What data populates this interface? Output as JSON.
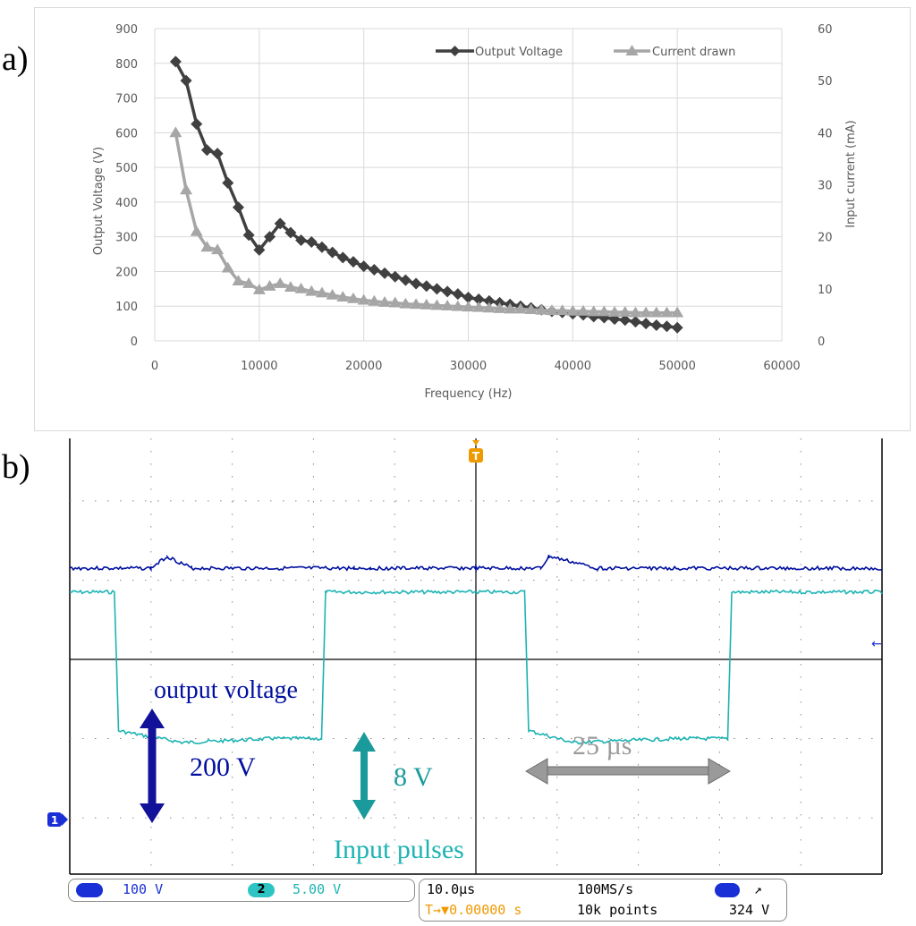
{
  "panel_labels": {
    "a": "a)",
    "b": "b)"
  },
  "chart_data": [
    {
      "type": "line",
      "title": "",
      "xlabel": "Frequency (Hz)",
      "ylabel": "Output Voltage (V)",
      "y2label": "Input current (mA)",
      "xlim": [
        0,
        60000
      ],
      "ylim": [
        0,
        900
      ],
      "y2lim": [
        0,
        60
      ],
      "x_ticks": [
        "0",
        "10000",
        "20000",
        "30000",
        "40000",
        "50000",
        "60000"
      ],
      "y_ticks": [
        "0",
        "100",
        "200",
        "300",
        "400",
        "500",
        "600",
        "700",
        "800",
        "900"
      ],
      "y2_ticks": [
        "0",
        "10",
        "20",
        "30",
        "40",
        "50",
        "60"
      ],
      "grid": true,
      "legend_position": "top-right",
      "series": [
        {
          "name": "Output Voltage",
          "axis": "left",
          "color": "#404040",
          "marker": "diamond",
          "x": [
            2000,
            3000,
            4000,
            5000,
            6000,
            7000,
            8000,
            9000,
            10000,
            11000,
            12000,
            13000,
            14000,
            15000,
            16000,
            17000,
            18000,
            19000,
            20000,
            21000,
            22000,
            23000,
            24000,
            25000,
            26000,
            27000,
            28000,
            29000,
            30000,
            31000,
            32000,
            33000,
            34000,
            35000,
            36000,
            37000,
            38000,
            39000,
            40000,
            41000,
            42000,
            43000,
            44000,
            45000,
            46000,
            47000,
            48000,
            49000,
            50000
          ],
          "values": [
            805,
            750,
            625,
            550,
            540,
            455,
            385,
            305,
            262,
            300,
            338,
            312,
            290,
            285,
            270,
            255,
            240,
            228,
            215,
            205,
            195,
            185,
            175,
            165,
            158,
            150,
            142,
            135,
            125,
            120,
            115,
            110,
            105,
            100,
            95,
            90,
            85,
            82,
            78,
            75,
            70,
            67,
            63,
            60,
            55,
            50,
            45,
            42,
            38
          ]
        },
        {
          "name": "Current drawn",
          "axis": "right",
          "color": "#a6a6a6",
          "marker": "triangle",
          "x": [
            2000,
            3000,
            4000,
            5000,
            6000,
            7000,
            8000,
            9000,
            10000,
            11000,
            12000,
            13000,
            14000,
            15000,
            16000,
            17000,
            18000,
            19000,
            20000,
            21000,
            22000,
            23000,
            24000,
            25000,
            26000,
            27000,
            28000,
            29000,
            30000,
            31000,
            32000,
            33000,
            34000,
            35000,
            36000,
            37000,
            38000,
            39000,
            40000,
            41000,
            42000,
            43000,
            44000,
            45000,
            46000,
            47000,
            48000,
            49000,
            50000
          ],
          "values": [
            40,
            29,
            21,
            18,
            17.5,
            14,
            11.5,
            11,
            9.8,
            10.5,
            11,
            10.3,
            10,
            9.5,
            9.2,
            8.8,
            8.4,
            8.1,
            7.8,
            7.6,
            7.4,
            7.3,
            7.1,
            7,
            6.9,
            6.8,
            6.7,
            6.6,
            6.5,
            6.4,
            6.3,
            6.2,
            6.1,
            6.1,
            6,
            5.9,
            5.8,
            5.8,
            5.7,
            5.7,
            5.6,
            5.6,
            5.5,
            5.5,
            5.4,
            5.4,
            5.4,
            5.4,
            5.4
          ]
        }
      ]
    },
    {
      "type": "line",
      "title": "",
      "x_unit": "µs",
      "xlim": [
        -50,
        50
      ],
      "series": [
        {
          "name": "output voltage",
          "color": "#000f9f",
          "x": [
            -50,
            -40,
            -38,
            -35,
            -15,
            -13,
            0,
            8,
            9,
            15,
            50
          ],
          "values": [
            1.15,
            1.15,
            1.3,
            1.15,
            1.15,
            1.15,
            1.15,
            1.15,
            1.3,
            1.15,
            1.15
          ],
          "unit": "div"
        },
        {
          "name": "Input pulses",
          "color": "#1db3b3",
          "x": [
            -50,
            -44.5,
            -44,
            -40,
            -36,
            -25,
            -19,
            -18.5,
            6,
            6.5,
            12,
            25,
            31,
            31.5,
            50
          ],
          "values": [
            0.85,
            0.85,
            -0.9,
            -0.98,
            -1.05,
            -1.0,
            -1.0,
            0.85,
            0.85,
            -0.9,
            -1.05,
            -1.0,
            -1.0,
            0.85,
            0.85
          ],
          "unit": "div"
        }
      ],
      "annotations": [
        {
          "id": "output_voltage",
          "text": "output voltage",
          "color": "#000f9f"
        },
        {
          "id": "v200",
          "text": "200 V",
          "color": "#000f9f"
        },
        {
          "id": "v8",
          "text": "8 V",
          "color": "#1a9a9a"
        },
        {
          "id": "us25",
          "text": "25 µs",
          "color": "#9a9a9a"
        },
        {
          "id": "input_pulses",
          "text": "Input pulses",
          "color": "#1db3b3"
        }
      ],
      "ch1_marker": "1",
      "trigger_marker": "T",
      "status": {
        "ch1_num": "1",
        "ch1_scale": "100 V",
        "ch2_num": "2",
        "ch2_scale": "5.00 V",
        "timebase": "10.0µs",
        "sample_rate": "100MS/s",
        "trigger_ch": "1",
        "trigger_slope": "↗",
        "trigger_pos": "T→▼0.00000 s",
        "record_length": "10k points",
        "trigger_level": "324 V"
      }
    }
  ]
}
